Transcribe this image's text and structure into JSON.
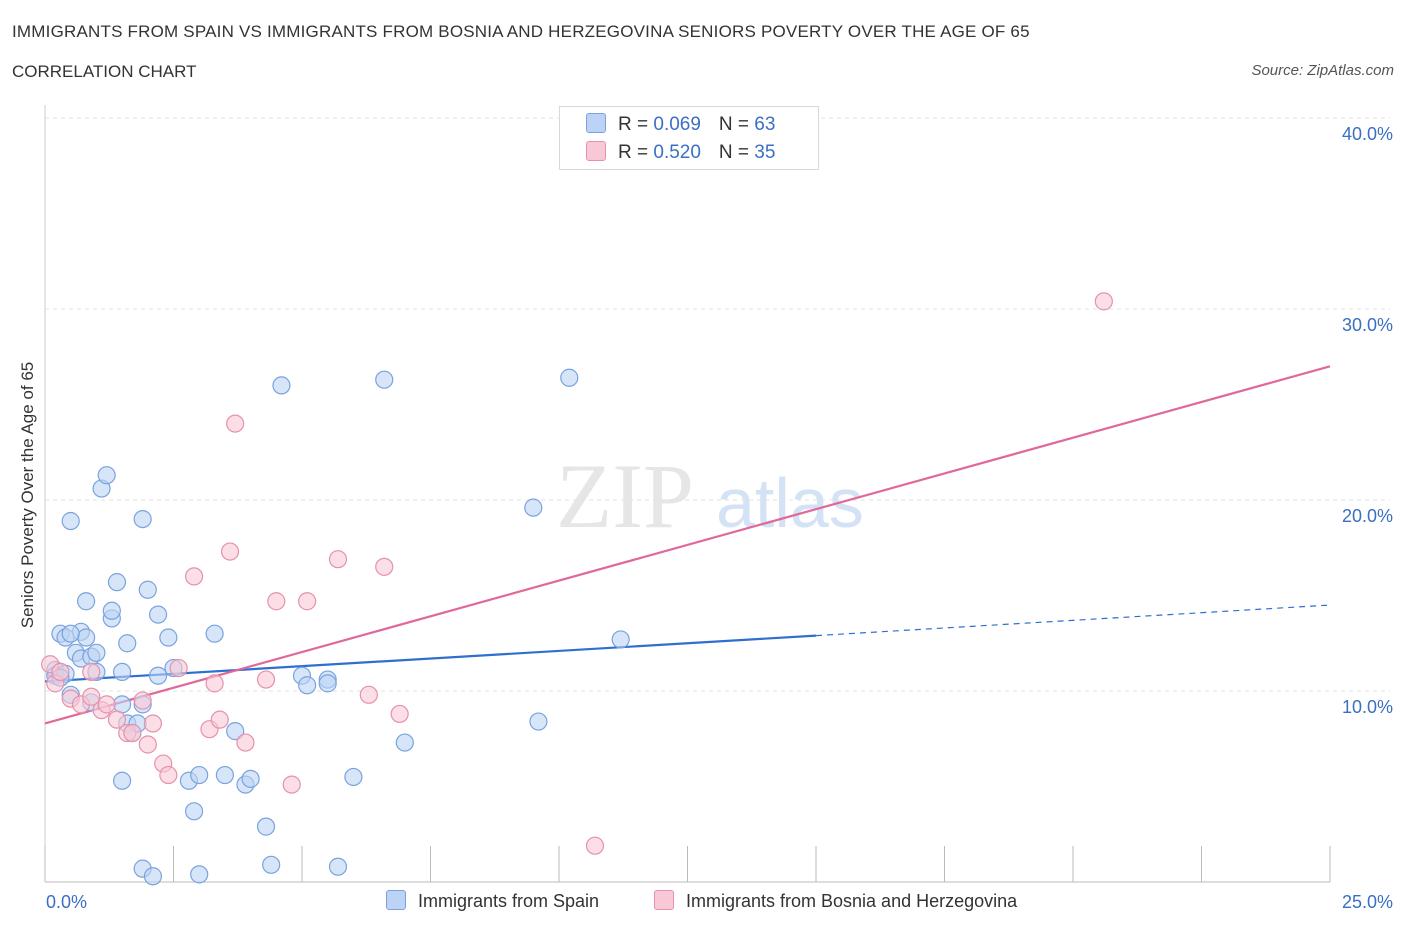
{
  "header": {
    "title": "IMMIGRANTS FROM SPAIN VS IMMIGRANTS FROM BOSNIA AND HERZEGOVINA SENIORS POVERTY OVER THE AGE OF 65",
    "subtitle": "CORRELATION CHART",
    "source": "Source: ZipAtlas.com"
  },
  "watermark": {
    "zip": "ZIP",
    "atlas": "atlas"
  },
  "colors": {
    "blue_fill": "#bcd3f5",
    "blue_stroke": "#7aa3dd",
    "blue_line": "#2f6fcf",
    "pink_fill": "#f8c8d6",
    "pink_stroke": "#e592ac",
    "pink_line": "#e0689a",
    "grid": "#e2e2e2",
    "axis_text": "#3a6fc4"
  },
  "legend_top": {
    "rows": [
      {
        "r_label": "R = ",
        "r_value": "0.069",
        "n_label": "N = ",
        "n_value": "63"
      },
      {
        "r_label": "R = ",
        "r_value": "0.520",
        "n_label": "N = ",
        "n_value": "35"
      }
    ]
  },
  "chart_data": {
    "type": "scatter",
    "title": "IMMIGRANTS FROM SPAIN VS IMMIGRANTS FROM BOSNIA AND HERZEGOVINA SENIORS POVERTY OVER THE AGE OF 65",
    "xlabel": "",
    "ylabel": "Seniors Poverty Over the Age of 65",
    "xlim": [
      0,
      25
    ],
    "ylim": [
      0,
      40
    ],
    "x_tick_labels": [
      "0.0%",
      "25.0%"
    ],
    "y_ticks": [
      10,
      20,
      30,
      40
    ],
    "y_tick_labels": [
      "10.0%",
      "20.0%",
      "30.0%",
      "40.0%"
    ],
    "legend_position": "bottom",
    "series": [
      {
        "name": "Immigrants from Spain",
        "color": "#bcd3f5",
        "R": 0.069,
        "N": 63,
        "trend": {
          "x0": 0,
          "y0": 10.5,
          "x1": 15,
          "y1": 12.9,
          "dashed_to_x": 25,
          "dashed_to_y": 14.5
        },
        "points": [
          [
            0.2,
            11.1
          ],
          [
            0.3,
            13.0
          ],
          [
            0.2,
            10.8
          ],
          [
            0.4,
            10.9
          ],
          [
            0.4,
            12.8
          ],
          [
            0.5,
            9.8
          ],
          [
            0.5,
            18.9
          ],
          [
            0.6,
            12.0
          ],
          [
            0.7,
            11.7
          ],
          [
            0.7,
            13.1
          ],
          [
            0.8,
            14.7
          ],
          [
            0.8,
            12.8
          ],
          [
            0.9,
            9.4
          ],
          [
            0.9,
            11.8
          ],
          [
            1.0,
            11.0
          ],
          [
            1.0,
            12.0
          ],
          [
            1.1,
            20.6
          ],
          [
            1.2,
            21.3
          ],
          [
            1.3,
            13.8
          ],
          [
            1.3,
            14.2
          ],
          [
            1.4,
            15.7
          ],
          [
            1.5,
            9.3
          ],
          [
            1.5,
            11.0
          ],
          [
            1.6,
            8.3
          ],
          [
            1.6,
            12.5
          ],
          [
            1.7,
            7.8
          ],
          [
            1.8,
            8.3
          ],
          [
            1.9,
            9.3
          ],
          [
            1.9,
            19.0
          ],
          [
            2.0,
            15.3
          ],
          [
            2.2,
            14.0
          ],
          [
            2.2,
            10.8
          ],
          [
            2.4,
            12.8
          ],
          [
            2.5,
            11.2
          ],
          [
            1.5,
            5.3
          ],
          [
            2.8,
            5.3
          ],
          [
            2.9,
            3.7
          ],
          [
            3.0,
            5.6
          ],
          [
            3.0,
            0.4
          ],
          [
            3.3,
            13.0
          ],
          [
            3.5,
            5.6
          ],
          [
            3.7,
            7.9
          ],
          [
            3.9,
            5.1
          ],
          [
            4.0,
            5.4
          ],
          [
            4.3,
            2.9
          ],
          [
            4.4,
            0.9
          ],
          [
            4.6,
            26.0
          ],
          [
            5.0,
            10.8
          ],
          [
            5.1,
            10.3
          ],
          [
            5.5,
            10.6
          ],
          [
            5.5,
            10.4
          ],
          [
            5.7,
            0.8
          ],
          [
            6.0,
            5.5
          ],
          [
            6.6,
            26.3
          ],
          [
            7.0,
            7.3
          ],
          [
            9.5,
            19.6
          ],
          [
            9.6,
            8.4
          ],
          [
            10.2,
            26.4
          ],
          [
            11.2,
            12.7
          ],
          [
            1.9,
            0.7
          ],
          [
            2.1,
            0.3
          ],
          [
            0.3,
            10.7
          ],
          [
            0.5,
            13.0
          ]
        ]
      },
      {
        "name": "Immigrants from Bosnia and Herzegovina",
        "color": "#f8c8d6",
        "R": 0.52,
        "N": 35,
        "trend": {
          "x0": 0,
          "y0": 8.3,
          "x1": 25,
          "y1": 27.0
        },
        "points": [
          [
            0.1,
            11.4
          ],
          [
            0.2,
            10.4
          ],
          [
            0.3,
            11.0
          ],
          [
            0.5,
            9.6
          ],
          [
            0.7,
            9.3
          ],
          [
            0.9,
            9.7
          ],
          [
            0.9,
            11.0
          ],
          [
            1.1,
            9.0
          ],
          [
            1.2,
            9.3
          ],
          [
            1.4,
            8.5
          ],
          [
            1.6,
            7.8
          ],
          [
            1.7,
            7.8
          ],
          [
            1.9,
            9.5
          ],
          [
            2.0,
            7.2
          ],
          [
            2.1,
            8.3
          ],
          [
            2.3,
            6.2
          ],
          [
            2.4,
            5.6
          ],
          [
            2.6,
            11.2
          ],
          [
            2.9,
            16.0
          ],
          [
            3.2,
            8.0
          ],
          [
            3.3,
            10.4
          ],
          [
            3.4,
            8.5
          ],
          [
            3.6,
            17.3
          ],
          [
            3.7,
            24.0
          ],
          [
            3.9,
            7.3
          ],
          [
            4.3,
            10.6
          ],
          [
            4.5,
            14.7
          ],
          [
            4.8,
            5.1
          ],
          [
            5.1,
            14.7
          ],
          [
            5.7,
            16.9
          ],
          [
            6.3,
            9.8
          ],
          [
            6.6,
            16.5
          ],
          [
            6.9,
            8.8
          ],
          [
            10.7,
            1.9
          ],
          [
            20.6,
            30.4
          ]
        ]
      }
    ]
  }
}
